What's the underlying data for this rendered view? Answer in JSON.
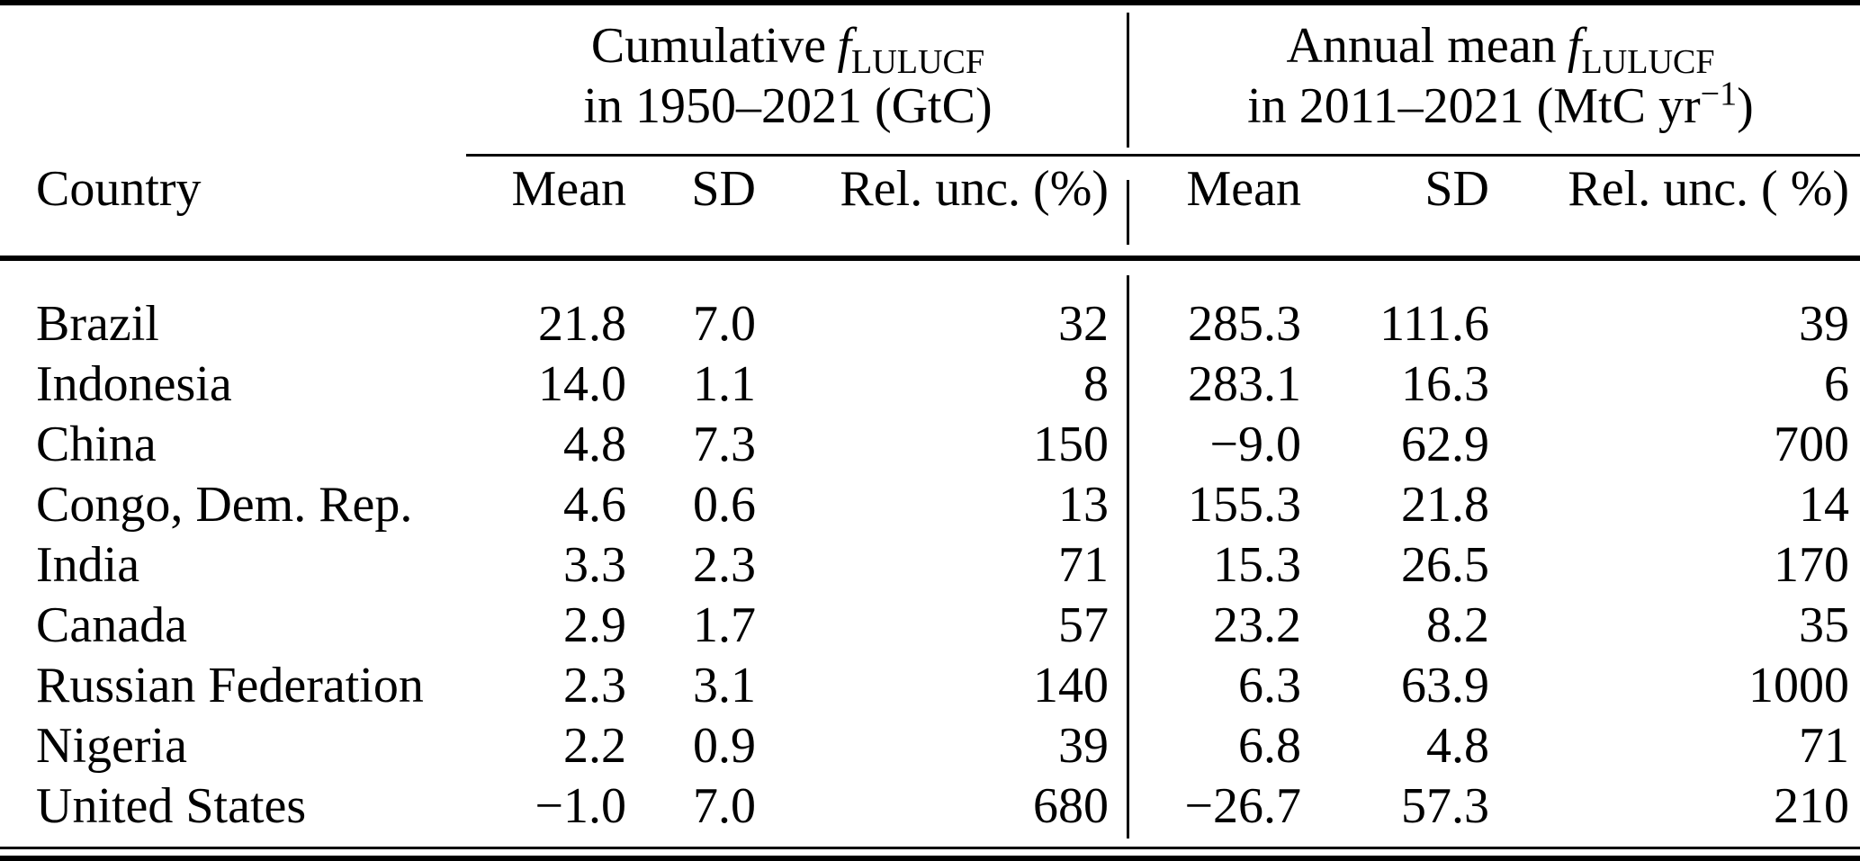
{
  "table": {
    "groups": {
      "left": {
        "prefix": "Cumulative",
        "f": "f",
        "sub": "LULUCF",
        "line2": "in 1950–2021 (GtC)"
      },
      "right": {
        "prefix": "Annual mean",
        "f": "f",
        "sub": "LULUCF",
        "line2_pre": "in 2011–2021 (MtC yr",
        "line2_sup": "−1",
        "line2_post": ")"
      }
    },
    "columns": [
      "Country",
      "Mean",
      "SD",
      "Rel. unc. (%)",
      "Mean",
      "SD",
      "Rel. unc. ( %)"
    ],
    "rows": [
      [
        "Brazil",
        "21.8",
        "7.0",
        "32",
        "285.3",
        "111.6",
        "39"
      ],
      [
        "Indonesia",
        "14.0",
        "1.1",
        "8",
        "283.1",
        "16.3",
        "6"
      ],
      [
        "China",
        "4.8",
        "7.3",
        "150",
        "−9.0",
        "62.9",
        "700"
      ],
      [
        "Congo, Dem. Rep.",
        "4.6",
        "0.6",
        "13",
        "155.3",
        "21.8",
        "14"
      ],
      [
        "India",
        "3.3",
        "2.3",
        "71",
        "15.3",
        "26.5",
        "170"
      ],
      [
        "Canada",
        "2.9",
        "1.7",
        "57",
        "23.2",
        "8.2",
        "35"
      ],
      [
        "Russian Federation",
        "2.3",
        "3.1",
        "140",
        "6.3",
        "63.9",
        "1000"
      ],
      [
        "Nigeria",
        "2.2",
        "0.9",
        "39",
        "6.8",
        "4.8",
        "71"
      ],
      [
        "United States",
        "−1.0",
        "7.0",
        "680",
        "−26.7",
        "57.3",
        "210"
      ]
    ]
  }
}
